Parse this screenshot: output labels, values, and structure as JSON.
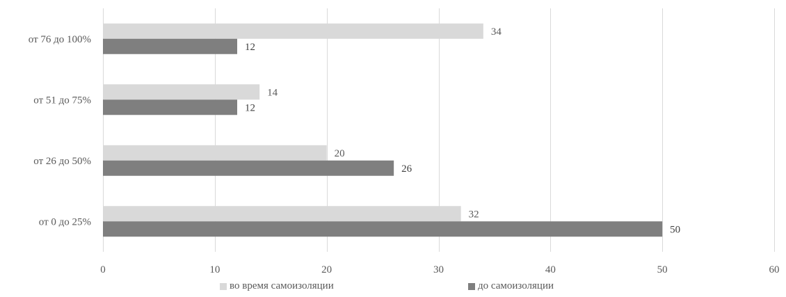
{
  "chart_data": {
    "type": "bar",
    "orientation": "horizontal",
    "categories": [
      "от 0 до 25%",
      "от 26 до 50%",
      "от 51 до 75%",
      "от 76 до 100%"
    ],
    "series": [
      {
        "name": "во время самоизоляции",
        "values": [
          32,
          20,
          14,
          34
        ],
        "color": "#d9d9d9"
      },
      {
        "name": "до самоизоляции",
        "values": [
          50,
          26,
          12,
          12
        ],
        "color": "#7f7f7f"
      }
    ],
    "xlim": [
      0,
      60
    ],
    "x_ticks": [
      "0",
      "10",
      "20",
      "30",
      "40",
      "50",
      "60"
    ],
    "grid": "vertical",
    "legend_position": "bottom",
    "title": "",
    "xlabel": "",
    "ylabel": ""
  }
}
